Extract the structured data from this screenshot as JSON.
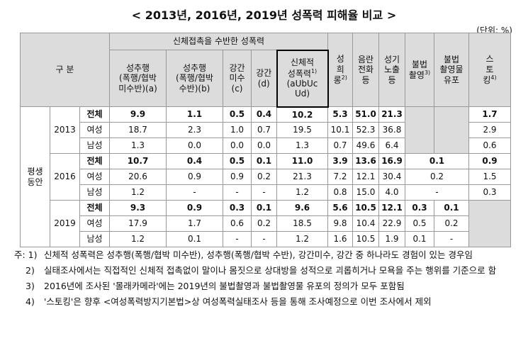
{
  "title": "< 2013년, 2016년, 2019년 성폭력 피해율 비교 >",
  "unit": "(단위: %)",
  "header": {
    "gubun": "구 분",
    "group_label": "신체접촉을 수반한 성폭력",
    "cols": {
      "c1": "성추행\n(폭행/협박\n미수반)(a)",
      "c2": "성추행\n(폭행/협박\n수반)(b)",
      "c3": "강간\n미수\n(c)",
      "c4": "강간\n(d)",
      "c5a": "신체적\n성폭력",
      "c5sup": "1)",
      "c5b": "(aUbUc\nUd)",
      "c6a": "성\n희\n롱",
      "c6sup": "2)",
      "c7": "음란\n전화\n등",
      "c8": "성기\n노출\n등",
      "c9a": "불법\n촬영",
      "c9sup": "3)",
      "c10": "불법\n촬영물\n유포",
      "c11a": "스\n토\n킹",
      "c11sup": "4)"
    }
  },
  "period_label": "평생\n동안",
  "years": [
    {
      "year": "2013",
      "rows": [
        {
          "sex": "전체",
          "c1": "9.9",
          "c2": "1.1",
          "c3": "0.5",
          "c4": "0.4",
          "c5": "10.2",
          "c6": "5.3",
          "c7": "51.0",
          "c8": "21.3",
          "c11": "1.7"
        },
        {
          "sex": "여성",
          "c1": "18.7",
          "c2": "2.3",
          "c3": "1.0",
          "c4": "0.7",
          "c5": "19.5",
          "c6": "10.1",
          "c7": "52.3",
          "c8": "36.8",
          "c11": "2.9"
        },
        {
          "sex": "남성",
          "c1": "1.3",
          "c2": "0.0",
          "c3": "0.0",
          "c4": "0.0",
          "c5": "1.3",
          "c6": "0.7",
          "c7": "49.6",
          "c8": "6.4",
          "c11": "0.6"
        }
      ]
    },
    {
      "year": "2016",
      "rows": [
        {
          "sex": "전체",
          "c1": "10.7",
          "c2": "0.4",
          "c3": "0.5",
          "c4": "0.1",
          "c5": "11.0",
          "c6": "3.9",
          "c7": "13.6",
          "c8": "16.9",
          "c910": "0.1",
          "c11": "0.9"
        },
        {
          "sex": "여성",
          "c1": "20.6",
          "c2": "0.9",
          "c3": "0.9",
          "c4": "0.2",
          "c5": "21.3",
          "c6": "7.2",
          "c7": "12.1",
          "c8": "30.4",
          "c910": "0.2",
          "c11": "1.5"
        },
        {
          "sex": "남성",
          "c1": "1.2",
          "c2": "-",
          "c3": "-",
          "c4": "-",
          "c5": "1.2",
          "c6": "0.8",
          "c7": "15.0",
          "c8": "4.0",
          "c910": "-",
          "c11": "0.3"
        }
      ]
    },
    {
      "year": "2019",
      "rows": [
        {
          "sex": "전체",
          "c1": "9.3",
          "c2": "0.9",
          "c3": "0.3",
          "c4": "0.1",
          "c5": "9.6",
          "c6": "5.6",
          "c7": "10.5",
          "c8": "12.1",
          "c9": "0.3",
          "c10": "0.1"
        },
        {
          "sex": "여성",
          "c1": "17.9",
          "c2": "1.7",
          "c3": "0.6",
          "c4": "0.2",
          "c5": "18.5",
          "c6": "9.8",
          "c7": "10.4",
          "c8": "22.9",
          "c9": "0.5",
          "c10": "0.2"
        },
        {
          "sex": "남성",
          "c1": "1.2",
          "c2": "0.1",
          "c3": "-",
          "c4": "-",
          "c5": "1.2",
          "c6": "1.6",
          "c7": "10.5",
          "c8": "1.9",
          "c9": "0.1",
          "c10": "-"
        }
      ]
    }
  ],
  "notes": [
    {
      "lead": "주: 1)",
      "text": "신체적 성폭력은 성추행(폭행/협박 미수반), 성추행(폭행/협박 수반), 강간미수, 강간 중 하나라도 경험이 있는 경우임"
    },
    {
      "lead": "2)",
      "text": "실태조사에서는 직접적인 신체적 접촉없이 말이나 몸짓으로 상대방을 성적으로 괴롭히거나 모욕을 주는 행위를 기준으로 함"
    },
    {
      "lead": "3)",
      "text": "2016년에 조사된 '몰래카메라'에는 2019년의 불법촬영과 불법촬영물 유포의 정의가 모두 포함됨"
    },
    {
      "lead": "4)",
      "text": "'스토킹'은 향후 <여성폭력방지기본법>상 여성폭력실태조사 등을 통해 조사예정으로 이번 조사에서 제외"
    }
  ]
}
